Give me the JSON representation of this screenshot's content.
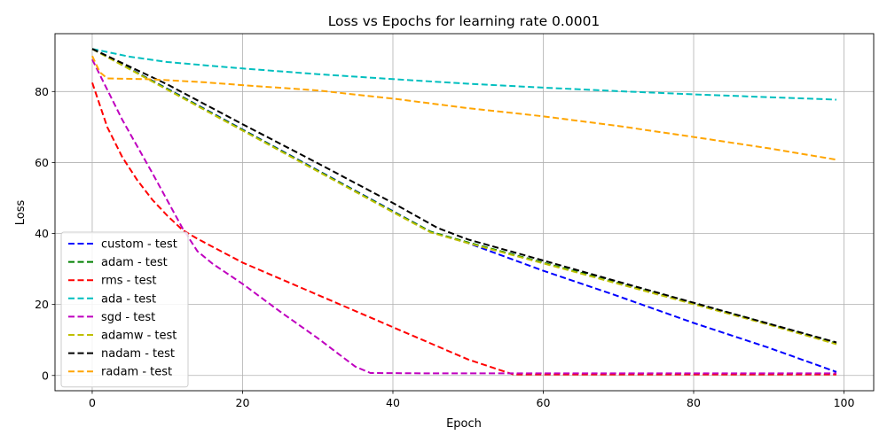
{
  "chart_data": {
    "type": "line",
    "title": "Loss vs Epochs for learning rate 0.0001",
    "xlabel": "Epoch",
    "ylabel": "Loss",
    "xlim": [
      -4.95,
      103.95
    ],
    "ylim": [
      -4.3,
      96.3
    ],
    "xticks": [
      0,
      20,
      40,
      60,
      80,
      100
    ],
    "yticks": [
      0,
      20,
      40,
      60,
      80
    ],
    "grid": true,
    "legend_position": "lower-left",
    "series": [
      {
        "name": "custom - test",
        "color": "#0000ff",
        "x": [
          0,
          10,
          20,
          30,
          40,
          45,
          50,
          60,
          70,
          80,
          90,
          99
        ],
        "y": [
          92,
          80.8,
          69.3,
          57.8,
          46.3,
          40.5,
          37.3,
          29.5,
          22.3,
          14.8,
          7.8,
          1.0
        ]
      },
      {
        "name": "adam - test",
        "color": "#008000",
        "x": [
          0,
          10,
          20,
          30,
          40,
          45,
          50,
          60,
          70,
          80,
          90,
          99
        ],
        "y": [
          92,
          80.7,
          69.2,
          57.7,
          46.2,
          40.5,
          37.5,
          31.8,
          26.0,
          20.3,
          14.5,
          9.0
        ]
      },
      {
        "name": "rms - test",
        "color": "#ff0000",
        "x": [
          0,
          2,
          4,
          6,
          8,
          10,
          12,
          14,
          20,
          30,
          40,
          50,
          55,
          56,
          70,
          99
        ],
        "y": [
          82.5,
          70.0,
          61.5,
          55.0,
          49.5,
          45.0,
          41.0,
          38.5,
          31.8,
          22.7,
          13.6,
          4.5,
          1.0,
          0.3,
          0.3,
          0.3
        ]
      },
      {
        "name": "ada - test",
        "color": "#00bfbf",
        "x": [
          0,
          5,
          10,
          15,
          20,
          30,
          40,
          50,
          60,
          70,
          80,
          90,
          99
        ],
        "y": [
          92,
          89.8,
          88.3,
          87.4,
          86.5,
          84.9,
          83.5,
          82.2,
          81.1,
          80.1,
          79.2,
          78.4,
          77.7
        ]
      },
      {
        "name": "sgd - test",
        "color": "#bf00bf",
        "x": [
          0,
          4,
          8,
          12,
          14,
          16,
          20,
          25,
          30,
          35,
          37,
          45,
          60,
          80,
          99
        ],
        "y": [
          89,
          72.0,
          57.0,
          41.5,
          35.0,
          31.5,
          25.8,
          18.0,
          10.5,
          2.5,
          0.7,
          0.6,
          0.6,
          0.6,
          0.6
        ]
      },
      {
        "name": "adamw - test",
        "color": "#bfbf00",
        "x": [
          0,
          10,
          20,
          30,
          40,
          45,
          50,
          60,
          70,
          80,
          90,
          99
        ],
        "y": [
          92,
          80.5,
          69.0,
          57.5,
          46.0,
          40.3,
          37.3,
          31.6,
          25.8,
          20.1,
          14.3,
          8.8
        ]
      },
      {
        "name": "nadam - test",
        "color": "#000000",
        "x": [
          0,
          10,
          20,
          30,
          40,
          46,
          50,
          60,
          70,
          80,
          90,
          99
        ],
        "y": [
          92,
          82.0,
          70.8,
          59.8,
          48.6,
          41.5,
          38.3,
          32.4,
          26.4,
          20.5,
          14.6,
          9.3
        ]
      },
      {
        "name": "radam - test",
        "color": "#ffa500",
        "x": [
          0,
          1,
          2,
          7,
          10,
          15,
          20,
          30,
          40,
          50,
          60,
          70,
          80,
          90,
          99
        ],
        "y": [
          90,
          85.5,
          83.7,
          83.5,
          83.2,
          82.6,
          81.8,
          80.3,
          78.0,
          75.3,
          73.0,
          70.3,
          67.2,
          64.0,
          60.8
        ]
      }
    ]
  }
}
